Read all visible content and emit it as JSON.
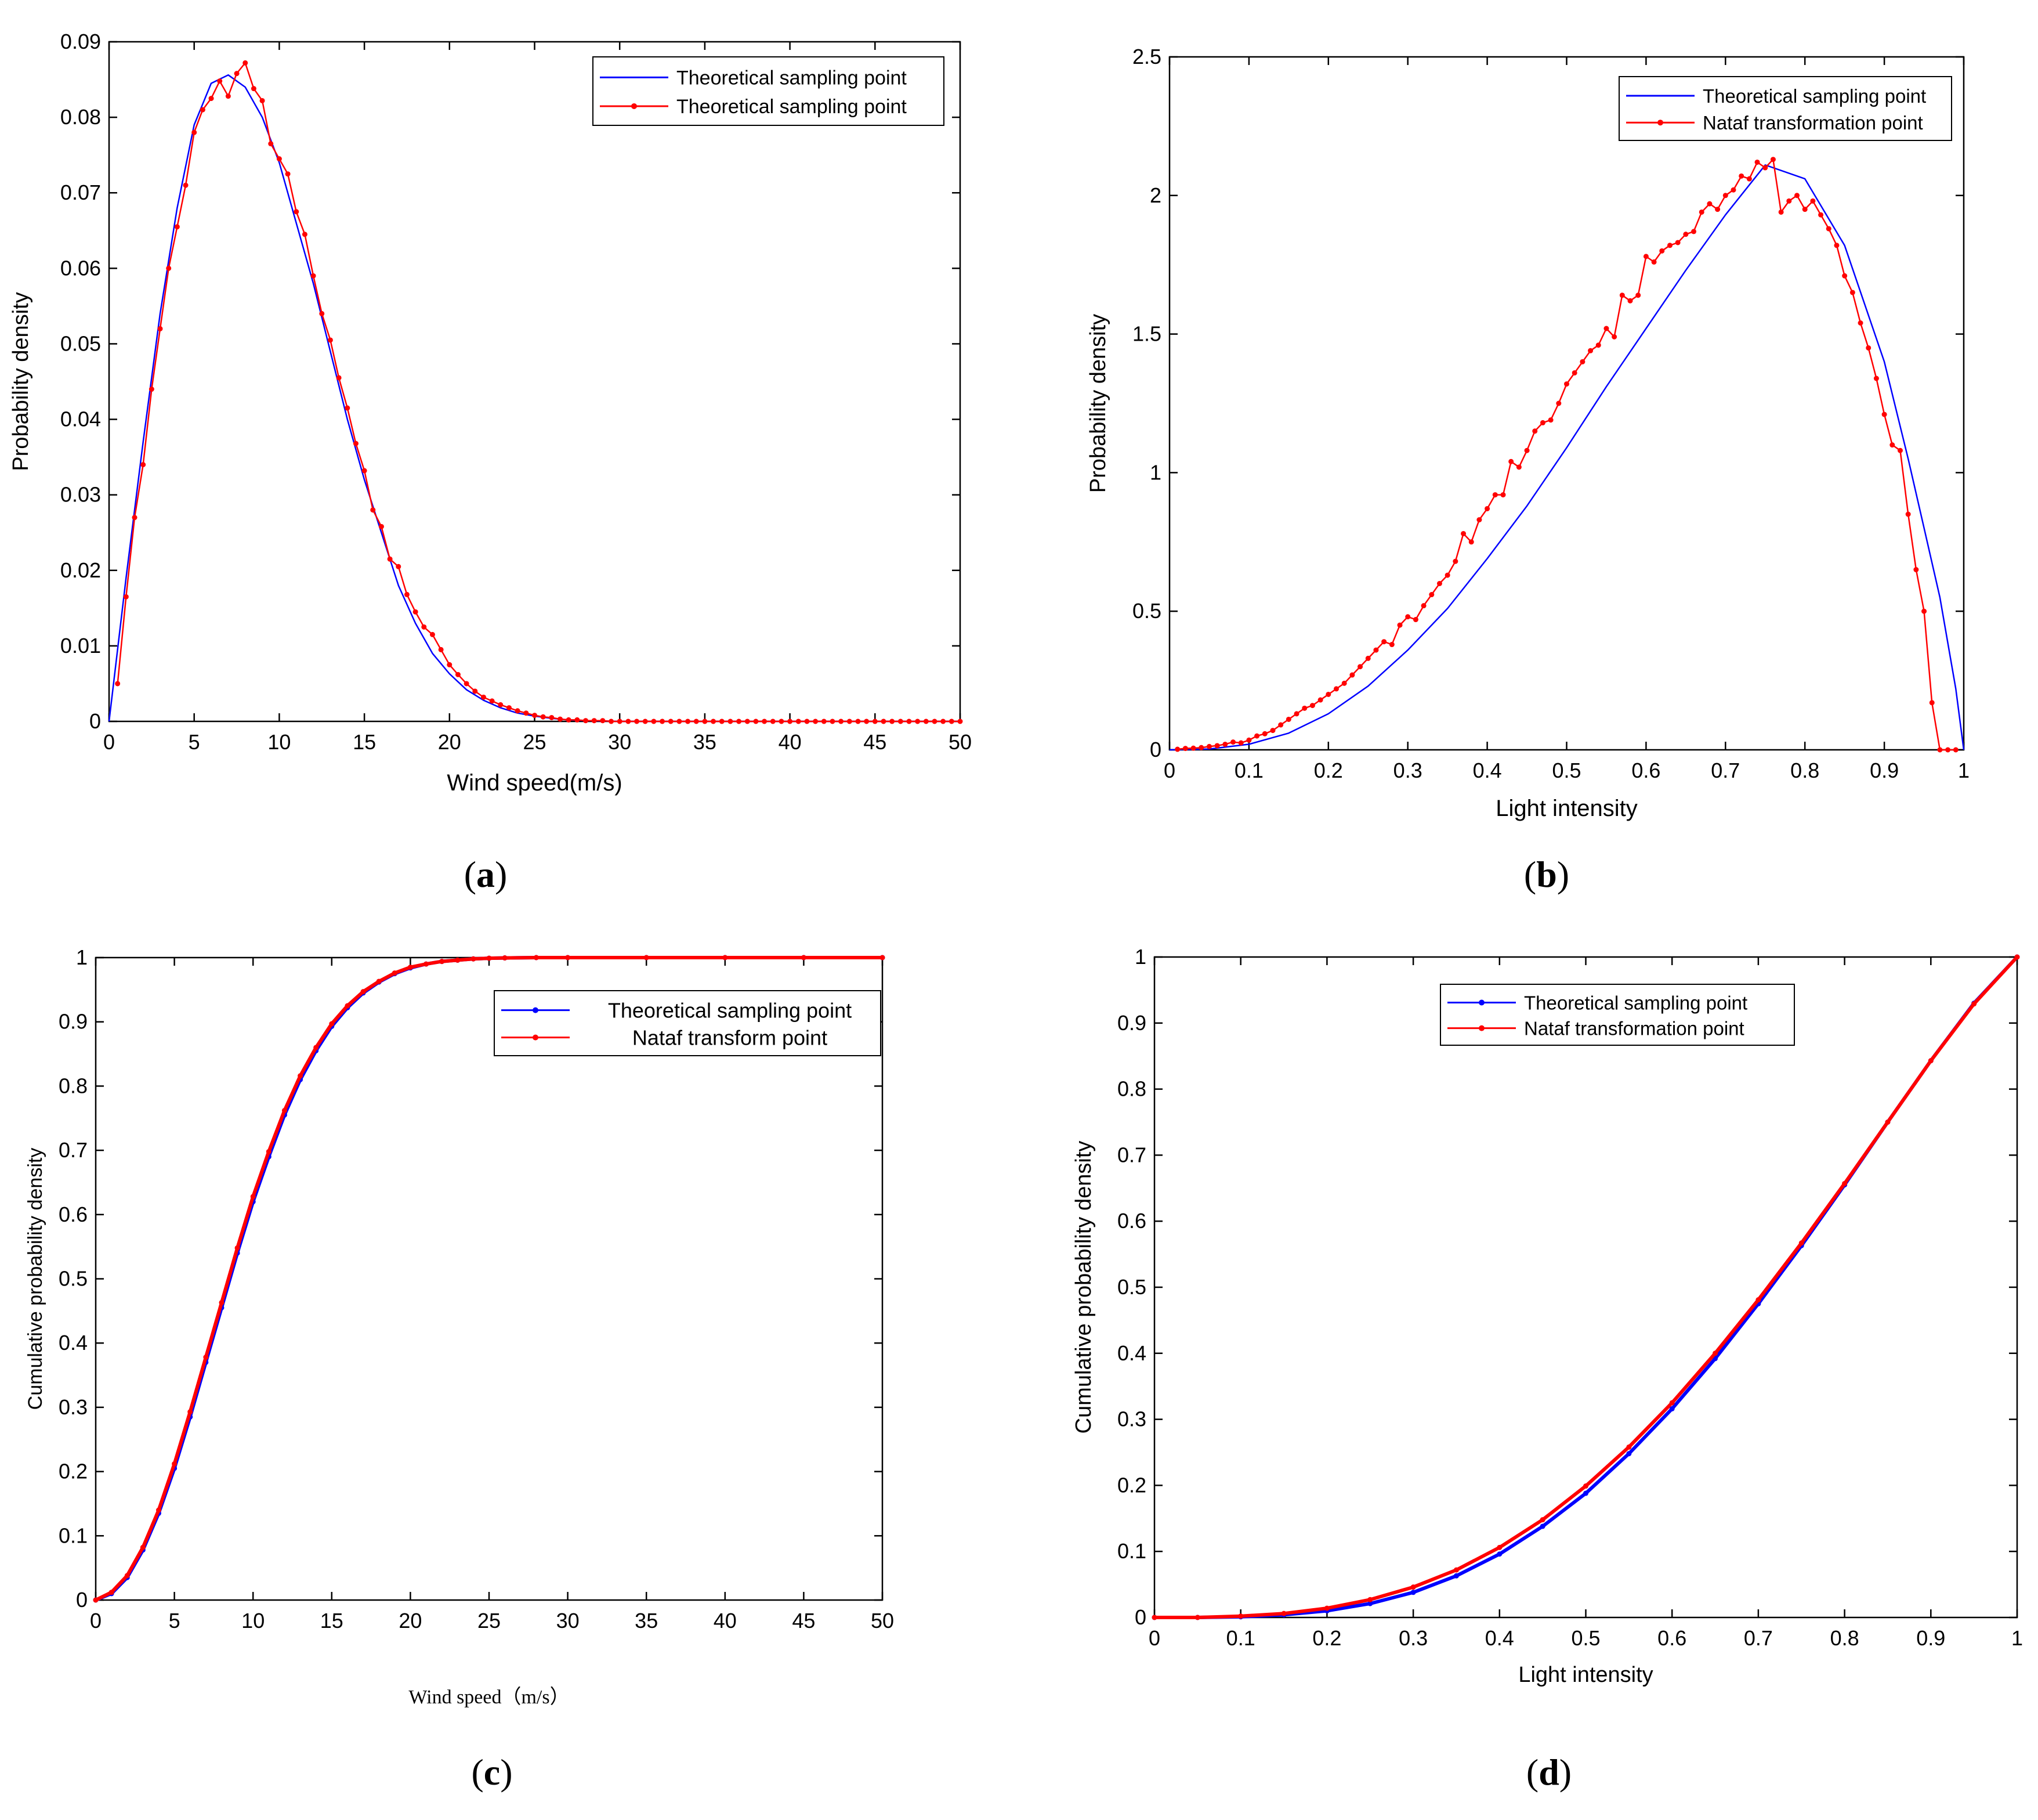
{
  "colors": {
    "theoretical": "#0000ff",
    "nataf": "#ff0000",
    "axis": "#000000",
    "background": "#ffffff"
  },
  "chart_data": [
    {
      "panel": "a",
      "panel_label": "a",
      "type": "line",
      "xlabel": "Wind speed(m/s)",
      "ylabel": "Probability density",
      "xlim": [
        0,
        50
      ],
      "ylim": [
        0,
        0.09
      ],
      "xticks": [
        0,
        5,
        10,
        15,
        20,
        25,
        30,
        35,
        40,
        45,
        50
      ],
      "yticks": [
        0,
        0.01,
        0.02,
        0.03,
        0.04,
        0.05,
        0.06,
        0.07,
        0.08,
        0.09
      ],
      "xtick_labels": [
        "0",
        "5",
        "10",
        "15",
        "20",
        "25",
        "30",
        "35",
        "40",
        "45",
        "50"
      ],
      "ytick_labels": [
        "0",
        "0.01",
        "0.02",
        "0.03",
        "0.04",
        "0.05",
        "0.06",
        "0.07",
        "0.08",
        "0.09"
      ],
      "legend_position": "top-right",
      "series": [
        {
          "name": "Theoretical sampling point",
          "color": "#0000ff",
          "markers": false,
          "x": [
            0,
            1,
            2,
            3,
            4,
            5,
            6,
            7,
            8,
            9,
            10,
            11,
            12,
            13,
            14,
            15,
            16,
            17,
            18,
            19,
            20,
            21,
            22,
            23,
            24,
            25,
            26,
            27,
            28,
            29,
            30,
            35,
            40,
            45,
            50
          ],
          "y": [
            0,
            0.019,
            0.037,
            0.054,
            0.068,
            0.079,
            0.0845,
            0.0856,
            0.084,
            0.08,
            0.074,
            0.066,
            0.058,
            0.049,
            0.04,
            0.032,
            0.025,
            0.018,
            0.013,
            0.009,
            0.0063,
            0.0042,
            0.0028,
            0.0018,
            0.0011,
            0.0007,
            0.0004,
            0.0002,
            0.0001,
            5e-05,
            0,
            0,
            0,
            0,
            0
          ]
        },
        {
          "name": "Theoretical sampling point",
          "color": "#ff0000",
          "markers": true,
          "x": [
            0.5,
            1,
            1.5,
            2,
            2.5,
            3,
            3.5,
            4,
            4.5,
            5,
            5.5,
            6,
            6.5,
            7,
            7.5,
            8,
            8.5,
            9,
            9.5,
            10,
            10.5,
            11,
            11.5,
            12,
            12.5,
            13,
            13.5,
            14,
            14.5,
            15,
            15.5,
            16,
            16.5,
            17,
            17.5,
            18,
            18.5,
            19,
            19.5,
            20,
            20.5,
            21,
            21.5,
            22,
            22.5,
            23,
            23.5,
            24,
            24.5,
            25,
            25.5,
            26,
            26.5,
            27,
            27.5,
            28,
            28.5,
            29,
            29.5,
            30,
            30.5,
            31,
            31.5,
            32,
            32.5,
            33,
            33.5,
            34,
            34.5,
            35,
            35.5,
            36,
            36.5,
            37,
            37.5,
            38,
            38.5,
            39,
            39.5,
            40,
            40.5,
            41,
            41.5,
            42,
            42.5,
            43,
            43.5,
            44,
            44.5,
            45,
            45.5,
            46,
            46.5,
            47,
            47.5,
            48,
            48.5,
            49,
            49.5,
            50
          ],
          "y": [
            0.005,
            0.0165,
            0.027,
            0.034,
            0.044,
            0.052,
            0.06,
            0.0655,
            0.071,
            0.078,
            0.081,
            0.0825,
            0.0848,
            0.0828,
            0.0858,
            0.0872,
            0.0838,
            0.0822,
            0.0765,
            0.0745,
            0.0725,
            0.0675,
            0.0645,
            0.059,
            0.054,
            0.0505,
            0.0455,
            0.0415,
            0.0368,
            0.0332,
            0.028,
            0.0258,
            0.0215,
            0.0205,
            0.0168,
            0.0145,
            0.0125,
            0.0115,
            0.0095,
            0.0075,
            0.0062,
            0.005,
            0.004,
            0.0032,
            0.0027,
            0.0022,
            0.0018,
            0.0014,
            0.0011,
            0.0008,
            0.0006,
            0.0005,
            0.0003,
            0.0002,
            0.0002,
            0.0001,
            0.0001,
            0.0001,
            0,
            0,
            0,
            0,
            0,
            0,
            0,
            0,
            0,
            0,
            0,
            0,
            0,
            0,
            0,
            0,
            0,
            0,
            0,
            0,
            0,
            0,
            0,
            0,
            0,
            0,
            0,
            0,
            0,
            0,
            0,
            0,
            0,
            0,
            0,
            0,
            0,
            0,
            0,
            0,
            0,
            0
          ]
        }
      ]
    },
    {
      "panel": "b",
      "panel_label": "b",
      "type": "line",
      "xlabel": "Light intensity",
      "ylabel": "Probability density",
      "xlim": [
        0,
        1
      ],
      "ylim": [
        0,
        2.5
      ],
      "xticks": [
        0,
        0.1,
        0.2,
        0.3,
        0.4,
        0.5,
        0.6,
        0.7,
        0.8,
        0.9,
        1
      ],
      "yticks": [
        0,
        0.5,
        1,
        1.5,
        2,
        2.5
      ],
      "xtick_labels": [
        "0",
        "0.1",
        "0.2",
        "0.3",
        "0.4",
        "0.5",
        "0.6",
        "0.7",
        "0.8",
        "0.9",
        "1"
      ],
      "ytick_labels": [
        "0",
        "0.5",
        "1",
        "1.5",
        "2",
        "2.5"
      ],
      "legend_position": "top-right",
      "series": [
        {
          "name": "Theoretical sampling point",
          "color": "#0000ff",
          "markers": false,
          "x": [
            0,
            0.05,
            0.1,
            0.15,
            0.2,
            0.25,
            0.3,
            0.35,
            0.4,
            0.45,
            0.5,
            0.55,
            0.6,
            0.65,
            0.7,
            0.75,
            0.8,
            0.85,
            0.9,
            0.93,
            0.95,
            0.97,
            0.99,
            1
          ],
          "y": [
            0,
            0.003,
            0.02,
            0.06,
            0.13,
            0.23,
            0.36,
            0.51,
            0.69,
            0.88,
            1.09,
            1.31,
            1.52,
            1.73,
            1.93,
            2.11,
            2.06,
            1.82,
            1.4,
            1.05,
            0.8,
            0.55,
            0.22,
            0
          ]
        },
        {
          "name": "Nataf transformation point",
          "color": "#ff0000",
          "markers": true,
          "x": [
            0.01,
            0.02,
            0.03,
            0.04,
            0.05,
            0.06,
            0.07,
            0.08,
            0.09,
            0.1,
            0.11,
            0.12,
            0.13,
            0.14,
            0.15,
            0.16,
            0.17,
            0.18,
            0.19,
            0.2,
            0.21,
            0.22,
            0.23,
            0.24,
            0.25,
            0.26,
            0.27,
            0.28,
            0.29,
            0.3,
            0.31,
            0.32,
            0.33,
            0.34,
            0.35,
            0.36,
            0.37,
            0.38,
            0.39,
            0.4,
            0.41,
            0.42,
            0.43,
            0.44,
            0.45,
            0.46,
            0.47,
            0.48,
            0.49,
            0.5,
            0.51,
            0.52,
            0.53,
            0.54,
            0.55,
            0.56,
            0.57,
            0.58,
            0.59,
            0.6,
            0.61,
            0.62,
            0.63,
            0.64,
            0.65,
            0.66,
            0.67,
            0.68,
            0.69,
            0.7,
            0.71,
            0.72,
            0.73,
            0.74,
            0.75,
            0.76,
            0.77,
            0.78,
            0.79,
            0.8,
            0.81,
            0.82,
            0.83,
            0.84,
            0.85,
            0.86,
            0.87,
            0.88,
            0.89,
            0.9,
            0.91,
            0.92,
            0.93,
            0.94,
            0.95,
            0.96,
            0.97,
            0.98,
            0.99
          ],
          "y": [
            0.002,
            0.005,
            0.006,
            0.008,
            0.012,
            0.015,
            0.02,
            0.028,
            0.025,
            0.035,
            0.05,
            0.058,
            0.07,
            0.09,
            0.11,
            0.13,
            0.15,
            0.16,
            0.18,
            0.2,
            0.22,
            0.24,
            0.27,
            0.3,
            0.33,
            0.36,
            0.39,
            0.38,
            0.45,
            0.48,
            0.47,
            0.52,
            0.56,
            0.6,
            0.63,
            0.68,
            0.78,
            0.75,
            0.83,
            0.87,
            0.92,
            0.92,
            1.04,
            1.02,
            1.08,
            1.15,
            1.18,
            1.19,
            1.25,
            1.32,
            1.36,
            1.4,
            1.44,
            1.46,
            1.52,
            1.49,
            1.64,
            1.62,
            1.64,
            1.78,
            1.76,
            1.8,
            1.82,
            1.83,
            1.86,
            1.87,
            1.94,
            1.97,
            1.95,
            2.0,
            2.02,
            2.07,
            2.06,
            2.12,
            2.1,
            2.13,
            1.94,
            1.98,
            2.0,
            1.95,
            1.98,
            1.93,
            1.88,
            1.82,
            1.71,
            1.65,
            1.54,
            1.45,
            1.34,
            1.21,
            1.1,
            1.08,
            0.85,
            0.65,
            0.5,
            0.17,
            0,
            0,
            0
          ]
        }
      ]
    },
    {
      "panel": "c",
      "panel_label": "c",
      "type": "line",
      "xlabel": "Wind speed（m/s）",
      "ylabel": "Cumulative probability density",
      "xlim": [
        0,
        50
      ],
      "ylim": [
        0,
        1
      ],
      "xticks": [
        0,
        5,
        10,
        15,
        20,
        25,
        30,
        35,
        40,
        45,
        50
      ],
      "yticks": [
        0,
        0.1,
        0.2,
        0.3,
        0.4,
        0.5,
        0.6,
        0.7,
        0.8,
        0.9,
        1
      ],
      "xtick_labels": [
        "0",
        "5",
        "10",
        "15",
        "20",
        "25",
        "30",
        "35",
        "40",
        "45",
        "50"
      ],
      "ytick_labels": [
        "0",
        "0.1",
        "0.2",
        "0.3",
        "0.4",
        "0.5",
        "0.6",
        "0.7",
        "0.8",
        "0.9",
        "1"
      ],
      "legend_position": "top-right",
      "series": [
        {
          "name": "Theoretical sampling point",
          "color": "#0000ff",
          "markers": true,
          "x": [
            0,
            1,
            2,
            3,
            4,
            5,
            6,
            7,
            8,
            9,
            10,
            11,
            12,
            13,
            14,
            15,
            16,
            17,
            18,
            19,
            20,
            21,
            22,
            23,
            24,
            25,
            26,
            28,
            30,
            35,
            40,
            45,
            50
          ],
          "y": [
            0,
            0.01,
            0.035,
            0.078,
            0.135,
            0.205,
            0.285,
            0.37,
            0.455,
            0.54,
            0.62,
            0.69,
            0.755,
            0.81,
            0.855,
            0.893,
            0.922,
            0.945,
            0.962,
            0.975,
            0.984,
            0.99,
            0.994,
            0.996,
            0.998,
            0.999,
            0.9995,
            1,
            1,
            1,
            1,
            1,
            1
          ]
        },
        {
          "name": "Nataf transform point",
          "color": "#ff0000",
          "markers": true,
          "x": [
            0,
            1,
            2,
            3,
            4,
            5,
            6,
            7,
            8,
            9,
            10,
            11,
            12,
            13,
            14,
            15,
            16,
            17,
            18,
            19,
            20,
            21,
            22,
            23,
            24,
            25,
            26,
            28,
            30,
            35,
            40,
            45,
            50
          ],
          "y": [
            0,
            0.012,
            0.038,
            0.082,
            0.14,
            0.212,
            0.293,
            0.378,
            0.463,
            0.548,
            0.628,
            0.698,
            0.762,
            0.816,
            0.86,
            0.897,
            0.925,
            0.947,
            0.963,
            0.976,
            0.985,
            0.99,
            0.994,
            0.996,
            0.998,
            0.999,
            0.9995,
            1,
            1,
            1,
            1,
            1,
            1
          ]
        }
      ]
    },
    {
      "panel": "d",
      "panel_label": "d",
      "type": "line",
      "xlabel": "Light intensity",
      "ylabel": "Cumulative probability density",
      "xlim": [
        0,
        1
      ],
      "ylim": [
        0,
        1
      ],
      "xticks": [
        0,
        0.1,
        0.2,
        0.3,
        0.4,
        0.5,
        0.6,
        0.7,
        0.8,
        0.9,
        1
      ],
      "yticks": [
        0,
        0.1,
        0.2,
        0.3,
        0.4,
        0.5,
        0.6,
        0.7,
        0.8,
        0.9,
        1
      ],
      "xtick_labels": [
        "0",
        "0.1",
        "0.2",
        "0.3",
        "0.4",
        "0.5",
        "0.6",
        "0.7",
        "0.8",
        "0.9",
        "1"
      ],
      "ytick_labels": [
        "0",
        "0.1",
        "0.2",
        "0.3",
        "0.4",
        "0.5",
        "0.6",
        "0.7",
        "0.8",
        "0.9",
        "1"
      ],
      "legend_position": "top-left",
      "series": [
        {
          "name": "Theoretical sampling point",
          "color": "#0000ff",
          "markers": true,
          "x": [
            0,
            0.05,
            0.1,
            0.15,
            0.2,
            0.25,
            0.3,
            0.35,
            0.4,
            0.45,
            0.5,
            0.55,
            0.6,
            0.65,
            0.7,
            0.75,
            0.8,
            0.85,
            0.9,
            0.95,
            1
          ],
          "y": [
            0,
            0,
            0.001,
            0.004,
            0.01,
            0.021,
            0.038,
            0.063,
            0.096,
            0.138,
            0.188,
            0.248,
            0.316,
            0.392,
            0.475,
            0.563,
            0.655,
            0.75,
            0.843,
            0.93,
            1
          ]
        },
        {
          "name": "Nataf transformation point",
          "color": "#ff0000",
          "markers": true,
          "x": [
            0,
            0.05,
            0.1,
            0.15,
            0.2,
            0.25,
            0.3,
            0.35,
            0.4,
            0.45,
            0.5,
            0.55,
            0.6,
            0.65,
            0.7,
            0.75,
            0.8,
            0.85,
            0.9,
            0.95,
            1
          ],
          "y": [
            0,
            0,
            0.002,
            0.006,
            0.014,
            0.027,
            0.046,
            0.072,
            0.106,
            0.148,
            0.199,
            0.258,
            0.325,
            0.4,
            0.481,
            0.567,
            0.657,
            0.75,
            0.843,
            0.929,
            1
          ]
        }
      ]
    }
  ]
}
